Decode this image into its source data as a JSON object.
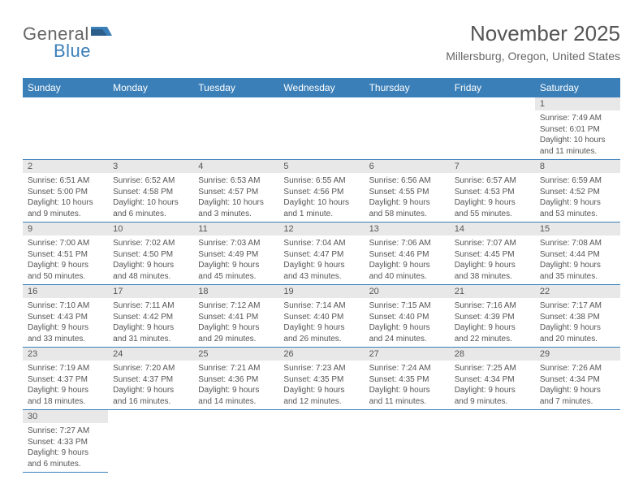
{
  "logo": {
    "part1": "General",
    "part2": "Blue"
  },
  "title": "November 2025",
  "location": "Millersburg, Oregon, United States",
  "colors": {
    "header_bg": "#3a7fb8",
    "daynum_bg": "#e8e8e8",
    "row_border": "#3a7fb8",
    "text": "#555555",
    "background": "#ffffff"
  },
  "dayHeaders": [
    "Sunday",
    "Monday",
    "Tuesday",
    "Wednesday",
    "Thursday",
    "Friday",
    "Saturday"
  ],
  "weeks": [
    [
      null,
      null,
      null,
      null,
      null,
      null,
      {
        "n": "1",
        "sr": "7:49 AM",
        "ss": "6:01 PM",
        "dl": "10 hours and 11 minutes."
      }
    ],
    [
      {
        "n": "2",
        "sr": "6:51 AM",
        "ss": "5:00 PM",
        "dl": "10 hours and 9 minutes."
      },
      {
        "n": "3",
        "sr": "6:52 AM",
        "ss": "4:58 PM",
        "dl": "10 hours and 6 minutes."
      },
      {
        "n": "4",
        "sr": "6:53 AM",
        "ss": "4:57 PM",
        "dl": "10 hours and 3 minutes."
      },
      {
        "n": "5",
        "sr": "6:55 AM",
        "ss": "4:56 PM",
        "dl": "10 hours and 1 minute."
      },
      {
        "n": "6",
        "sr": "6:56 AM",
        "ss": "4:55 PM",
        "dl": "9 hours and 58 minutes."
      },
      {
        "n": "7",
        "sr": "6:57 AM",
        "ss": "4:53 PM",
        "dl": "9 hours and 55 minutes."
      },
      {
        "n": "8",
        "sr": "6:59 AM",
        "ss": "4:52 PM",
        "dl": "9 hours and 53 minutes."
      }
    ],
    [
      {
        "n": "9",
        "sr": "7:00 AM",
        "ss": "4:51 PM",
        "dl": "9 hours and 50 minutes."
      },
      {
        "n": "10",
        "sr": "7:02 AM",
        "ss": "4:50 PM",
        "dl": "9 hours and 48 minutes."
      },
      {
        "n": "11",
        "sr": "7:03 AM",
        "ss": "4:49 PM",
        "dl": "9 hours and 45 minutes."
      },
      {
        "n": "12",
        "sr": "7:04 AM",
        "ss": "4:47 PM",
        "dl": "9 hours and 43 minutes."
      },
      {
        "n": "13",
        "sr": "7:06 AM",
        "ss": "4:46 PM",
        "dl": "9 hours and 40 minutes."
      },
      {
        "n": "14",
        "sr": "7:07 AM",
        "ss": "4:45 PM",
        "dl": "9 hours and 38 minutes."
      },
      {
        "n": "15",
        "sr": "7:08 AM",
        "ss": "4:44 PM",
        "dl": "9 hours and 35 minutes."
      }
    ],
    [
      {
        "n": "16",
        "sr": "7:10 AM",
        "ss": "4:43 PM",
        "dl": "9 hours and 33 minutes."
      },
      {
        "n": "17",
        "sr": "7:11 AM",
        "ss": "4:42 PM",
        "dl": "9 hours and 31 minutes."
      },
      {
        "n": "18",
        "sr": "7:12 AM",
        "ss": "4:41 PM",
        "dl": "9 hours and 29 minutes."
      },
      {
        "n": "19",
        "sr": "7:14 AM",
        "ss": "4:40 PM",
        "dl": "9 hours and 26 minutes."
      },
      {
        "n": "20",
        "sr": "7:15 AM",
        "ss": "4:40 PM",
        "dl": "9 hours and 24 minutes."
      },
      {
        "n": "21",
        "sr": "7:16 AM",
        "ss": "4:39 PM",
        "dl": "9 hours and 22 minutes."
      },
      {
        "n": "22",
        "sr": "7:17 AM",
        "ss": "4:38 PM",
        "dl": "9 hours and 20 minutes."
      }
    ],
    [
      {
        "n": "23",
        "sr": "7:19 AM",
        "ss": "4:37 PM",
        "dl": "9 hours and 18 minutes."
      },
      {
        "n": "24",
        "sr": "7:20 AM",
        "ss": "4:37 PM",
        "dl": "9 hours and 16 minutes."
      },
      {
        "n": "25",
        "sr": "7:21 AM",
        "ss": "4:36 PM",
        "dl": "9 hours and 14 minutes."
      },
      {
        "n": "26",
        "sr": "7:23 AM",
        "ss": "4:35 PM",
        "dl": "9 hours and 12 minutes."
      },
      {
        "n": "27",
        "sr": "7:24 AM",
        "ss": "4:35 PM",
        "dl": "9 hours and 11 minutes."
      },
      {
        "n": "28",
        "sr": "7:25 AM",
        "ss": "4:34 PM",
        "dl": "9 hours and 9 minutes."
      },
      {
        "n": "29",
        "sr": "7:26 AM",
        "ss": "4:34 PM",
        "dl": "9 hours and 7 minutes."
      }
    ],
    [
      {
        "n": "30",
        "sr": "7:27 AM",
        "ss": "4:33 PM",
        "dl": "9 hours and 6 minutes."
      },
      null,
      null,
      null,
      null,
      null,
      null
    ]
  ],
  "labels": {
    "sunrise": "Sunrise: ",
    "sunset": "Sunset: ",
    "daylight": "Daylight: "
  }
}
